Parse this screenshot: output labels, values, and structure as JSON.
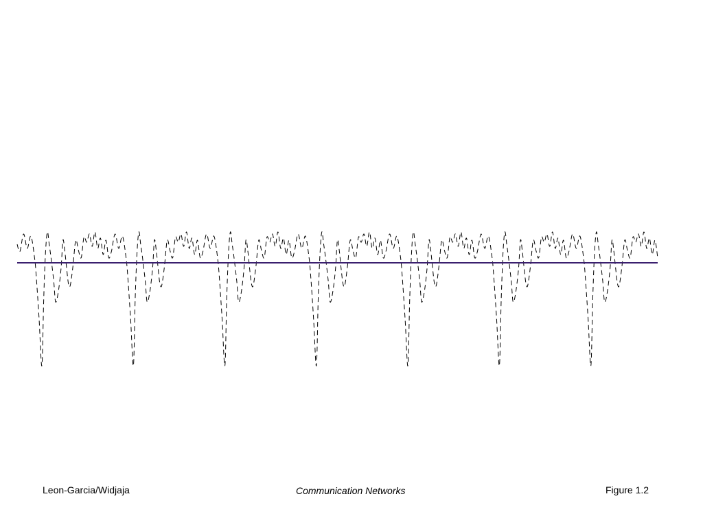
{
  "footer": {
    "author": "Leon-Garcia/Widjaja",
    "book": "Communication Networks",
    "figure": "Figure 1.2"
  },
  "chart_data": {
    "type": "line",
    "title": "",
    "xlabel": "",
    "ylabel": "",
    "grid": false,
    "xlim": [
      0,
      7
    ],
    "ylim": [
      -1.2,
      0.35
    ],
    "periods": 7,
    "period_shape": {
      "x": [
        0.0,
        0.03,
        0.07,
        0.11,
        0.15,
        0.19,
        0.21,
        0.24,
        0.27,
        0.29,
        0.31,
        0.33,
        0.35,
        0.37,
        0.4,
        0.42,
        0.45,
        0.48,
        0.5,
        0.52,
        0.54,
        0.56,
        0.58,
        0.61,
        0.64,
        0.67,
        0.7,
        0.73,
        0.76,
        0.79,
        0.82,
        0.85,
        0.88,
        0.91,
        0.94,
        0.97,
        1.0
      ],
      "y": [
        0.18,
        0.11,
        0.28,
        0.14,
        0.26,
        0.05,
        -0.15,
        -0.55,
        -1.0,
        -0.35,
        0.1,
        0.3,
        0.18,
        0.05,
        -0.18,
        -0.38,
        -0.28,
        -0.05,
        0.22,
        0.12,
        -0.05,
        -0.2,
        -0.22,
        -0.03,
        0.22,
        0.12,
        0.05,
        0.25,
        0.2,
        0.28,
        0.16,
        0.3,
        0.14,
        0.24,
        0.08,
        0.22,
        0.05
      ]
    },
    "series": [
      {
        "name": "",
        "style": "dashed",
        "color": "#000000"
      },
      {
        "name": "",
        "style": "solid",
        "color": "#3a1f6e",
        "values": [
          0,
          0
        ]
      }
    ]
  }
}
